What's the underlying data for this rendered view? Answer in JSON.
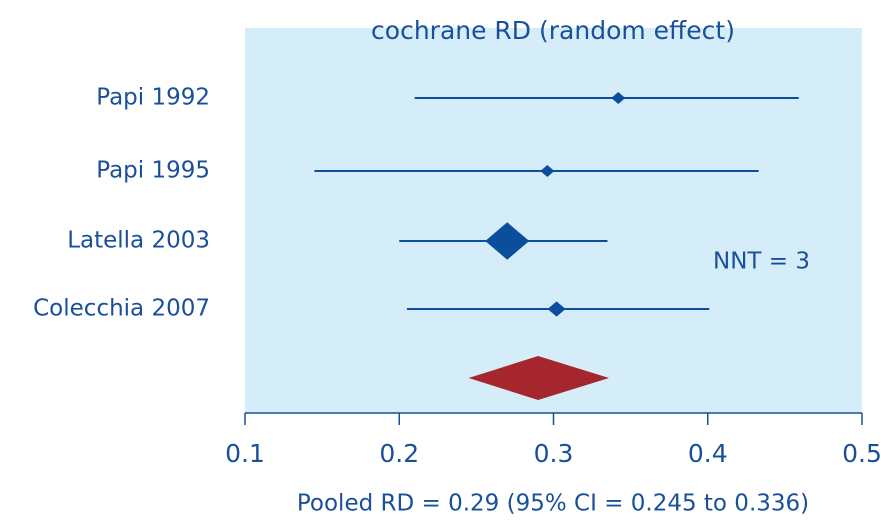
{
  "chart_data": {
    "type": "forest",
    "title": "cochrane RD (random effect)",
    "categories": [
      "Papi 1992",
      "Papi 1995",
      "Latella 2003",
      "Colecchia 2007"
    ],
    "values": [
      0.342,
      0.296,
      0.27,
      0.302
    ],
    "lower": [
      0.21,
      0.145,
      0.2,
      0.205
    ],
    "upper": [
      0.459,
      0.433,
      0.335,
      0.401
    ],
    "weights": [
      7,
      7,
      22,
      9
    ],
    "color": "#0b4f9c",
    "pooled": {
      "value": 0.29,
      "lower": 0.245,
      "upper": 0.336,
      "color": "#a6262d"
    },
    "xlim": [
      0.1,
      0.5
    ],
    "xticks": [
      0.1,
      0.2,
      0.3,
      0.4,
      0.5
    ],
    "annotations": [
      "NNT = 3",
      "Pooled RD = 0.29 (95% CI = 0.245 to 0.336)"
    ]
  }
}
